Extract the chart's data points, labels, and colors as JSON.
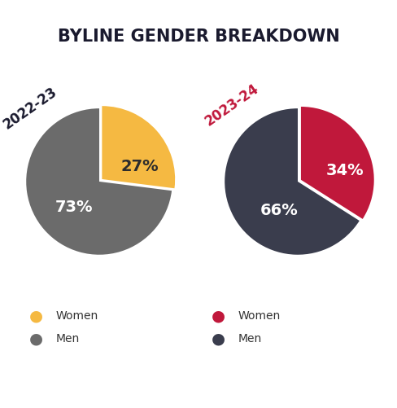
{
  "title": "BYLINE GENDER BREAKDOWN",
  "title_fontsize": 15,
  "title_fontweight": "bold",
  "title_color": "#1a1a2e",
  "chart1_label": "2022-23",
  "chart1_values": [
    27,
    73
  ],
  "chart1_colors": [
    "#F5B942",
    "#6b6b6b"
  ],
  "chart1_pct_labels": [
    "27%",
    "73%"
  ],
  "chart1_pct_colors": [
    "#2d2d2d",
    "#ffffff"
  ],
  "chart1_label_color": "#1a1a2e",
  "chart1_explode": [
    0.05,
    0
  ],
  "chart2_label": "2023-24",
  "chart2_values": [
    34,
    66
  ],
  "chart2_colors": [
    "#C0183B",
    "#3a3d4d"
  ],
  "chart2_pct_labels": [
    "34%",
    "66%"
  ],
  "chart2_pct_colors": [
    "#ffffff",
    "#ffffff"
  ],
  "chart2_label_color": "#C0183B",
  "chart2_explode": [
    0.05,
    0
  ],
  "legend1_women_color": "#F5B942",
  "legend1_men_color": "#6b6b6b",
  "legend2_women_color": "#C0183B",
  "legend2_men_color": "#3a3d4d",
  "bg_color": "#ffffff"
}
